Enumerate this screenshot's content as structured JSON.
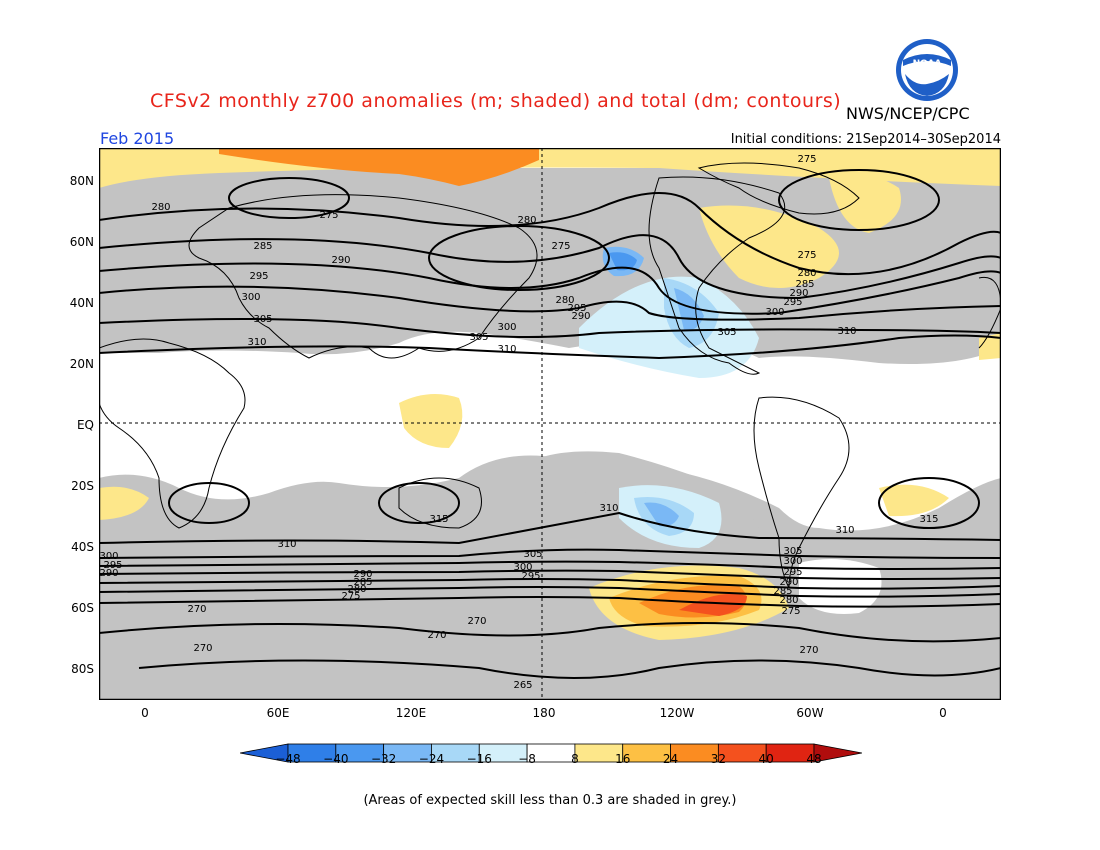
{
  "header": {
    "title": "CFSv2 monthly z700 anomalies (m; shaded) and total (dm; contours)",
    "agency": "NWS/NCEP/CPC",
    "month": "Feb 2015",
    "initial_conditions": "Initial conditions: 21Sep2014–30Sep2014",
    "logo_text": "NOAA"
  },
  "map": {
    "lat_labels": [
      "80N",
      "60N",
      "40N",
      "20N",
      "EQ",
      "20S",
      "40S",
      "60S",
      "80S"
    ],
    "lon_labels": [
      "0",
      "60E",
      "120E",
      "180",
      "120W",
      "60W",
      "0"
    ],
    "contour_labels": {
      "n280": "280",
      "n275a": "275",
      "n285": "285",
      "n290a": "290",
      "n295a": "295",
      "n300a": "300",
      "n305a": "305",
      "n310a": "310",
      "n280b": "280",
      "n275b": "275",
      "n295b": "295",
      "n290b": "290",
      "n305b": "305",
      "n300b": "300",
      "n310b": "310",
      "n275c": "275",
      "n275d": "275",
      "n280c": "280",
      "n285c": "285",
      "n290c": "290",
      "n295c": "295",
      "n300c": "300",
      "n305c": "305",
      "n310c": "310",
      "s315a": "315",
      "s310a": "310",
      "s315b": "315",
      "s300": "300",
      "s295": "295",
      "s290": "290",
      "s305b": "305",
      "s300b": "300",
      "s295b": "295",
      "s290b": "290",
      "s285b": "285",
      "s280b": "280",
      "s275b": "275",
      "s310b": "310",
      "s310c": "310",
      "s305c": "305",
      "s300c": "300",
      "s295c": "295",
      "s290c": "290",
      "s285c": "285",
      "s280c": "280",
      "s275c": "275",
      "s270a": "270",
      "s270b": "270",
      "s270c": "270",
      "s270d": "270",
      "s270e": "270",
      "s265": "265"
    }
  },
  "colorbar": {
    "ticks": [
      "−48",
      "−40",
      "−32",
      "−24",
      "−16",
      "−8",
      "8",
      "16",
      "24",
      "32",
      "40",
      "48"
    ],
    "colors": [
      "#1b5fd6",
      "#2f7fe8",
      "#4a98f0",
      "#7ab8f5",
      "#a8d8f7",
      "#d4f0fa",
      "#ffffff",
      "#fde78a",
      "#fdc044",
      "#fb8c21",
      "#f4511e",
      "#e02412",
      "#b00d0d"
    ]
  },
  "footnote": "(Areas of expected skill less than 0.3 are shaded in grey.)"
}
